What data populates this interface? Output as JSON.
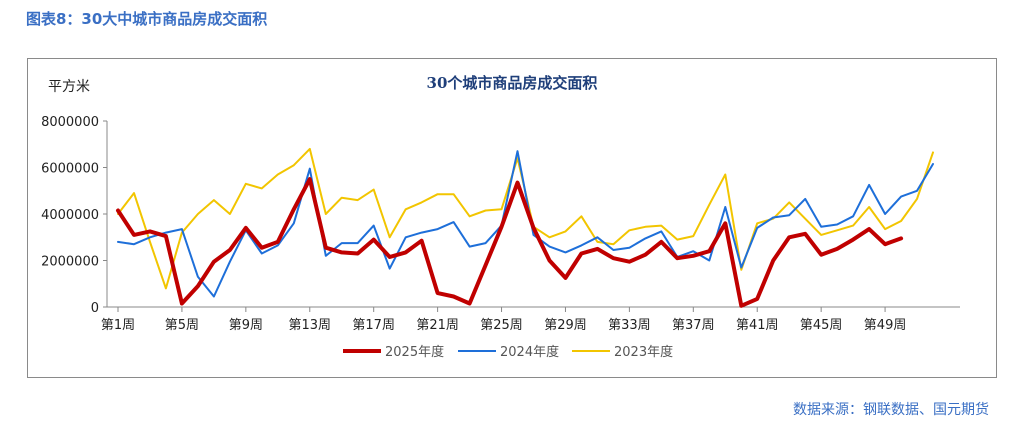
{
  "figure_title": "图表8：30大中城市商品房成交面积",
  "source": "数据来源：钢联数据、国元期货",
  "chart_data": {
    "type": "line",
    "title": "30个城市商品房成交面积",
    "ylabel": "平方米",
    "ylim": [
      0,
      8000000
    ],
    "yticks": [
      0,
      2000000,
      4000000,
      6000000,
      8000000
    ],
    "x": [
      1,
      2,
      3,
      4,
      5,
      6,
      7,
      8,
      9,
      10,
      11,
      12,
      13,
      14,
      15,
      16,
      17,
      18,
      19,
      20,
      21,
      22,
      23,
      24,
      25,
      26,
      27,
      28,
      29,
      30,
      31,
      32,
      33,
      34,
      35,
      36,
      37,
      38,
      39,
      40,
      41,
      42,
      43,
      44,
      45,
      46,
      47,
      48,
      49,
      50,
      51,
      52,
      53
    ],
    "xtick_values": [
      1,
      5,
      9,
      13,
      17,
      21,
      25,
      29,
      33,
      37,
      41,
      45,
      49
    ],
    "xtick_labels": [
      "第1周",
      "第5周",
      "第9周",
      "第13周",
      "第17周",
      "第21周",
      "第25周",
      "第29周",
      "第33周",
      "第37周",
      "第41周",
      "第45周",
      "第49周"
    ],
    "grid": false,
    "legend_position": "bottom",
    "series": [
      {
        "name": "2025年度",
        "color": "#c00000",
        "width": 4,
        "values": [
          4150000,
          3100000,
          3250000,
          3050000,
          150000,
          900000,
          1950000,
          2450000,
          3400000,
          2550000,
          2800000,
          4200000,
          5500000,
          2550000,
          2350000,
          2300000,
          2900000,
          2150000,
          2350000,
          2850000,
          600000,
          450000,
          150000,
          1800000,
          3450000,
          5350000,
          3400000,
          2000000,
          1250000,
          2300000,
          2500000,
          2100000,
          1950000,
          2250000,
          2800000,
          2100000,
          2200000,
          2400000,
          3600000,
          50000,
          350000,
          2000000,
          3000000,
          3150000,
          2250000,
          2500000,
          2900000,
          3350000,
          2700000,
          2950000,
          null,
          null,
          null
        ]
      },
      {
        "name": "2024年度",
        "color": "#1e6fd9",
        "width": 2,
        "values": [
          2800000,
          2700000,
          3000000,
          3200000,
          3350000,
          1300000,
          450000,
          1950000,
          3300000,
          2300000,
          2650000,
          3600000,
          5950000,
          2200000,
          2750000,
          2750000,
          3500000,
          1650000,
          3000000,
          3200000,
          3350000,
          3650000,
          2600000,
          2750000,
          3500000,
          6700000,
          3100000,
          2600000,
          2350000,
          2650000,
          3000000,
          2450000,
          2550000,
          2950000,
          3250000,
          2150000,
          2400000,
          2000000,
          4300000,
          1700000,
          3400000,
          3850000,
          3950000,
          4650000,
          3450000,
          3550000,
          3900000,
          5250000,
          4000000,
          4750000,
          5000000,
          6150000,
          null
        ]
      },
      {
        "name": "2023年度",
        "color": "#f2c500",
        "width": 2,
        "values": [
          4000000,
          4900000,
          2800000,
          800000,
          3200000,
          4000000,
          4600000,
          4000000,
          5300000,
          5100000,
          5700000,
          6100000,
          6800000,
          4000000,
          4700000,
          4600000,
          5050000,
          3000000,
          4200000,
          4500000,
          4850000,
          4850000,
          3900000,
          4150000,
          4200000,
          6400000,
          3450000,
          3000000,
          3250000,
          3900000,
          2800000,
          2700000,
          3300000,
          3450000,
          3500000,
          2900000,
          3050000,
          4400000,
          5700000,
          1600000,
          3600000,
          3800000,
          4500000,
          3800000,
          3100000,
          3300000,
          3500000,
          4300000,
          3350000,
          3700000,
          4650000,
          6650000,
          null
        ]
      }
    ]
  }
}
